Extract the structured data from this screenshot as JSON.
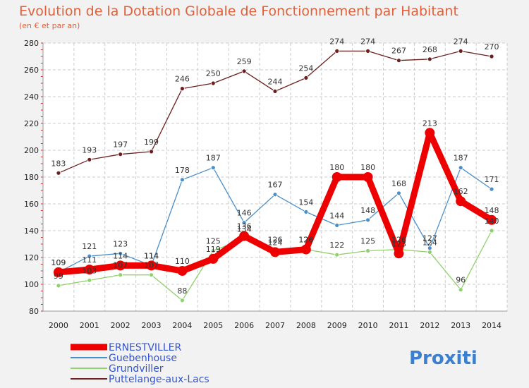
{
  "chart_data": {
    "type": "line",
    "title": "Evolution de la Dotation Globale de Fonctionnement par Habitant",
    "subtitle": "(en € et par an)",
    "xlabel": "",
    "ylabel": "",
    "ylim": [
      80,
      280
    ],
    "yticks": [
      80,
      100,
      120,
      140,
      160,
      180,
      200,
      220,
      240,
      260,
      280
    ],
    "categories": [
      "2000",
      "2001",
      "2002",
      "2003",
      "2004",
      "2005",
      "2006",
      "2007",
      "2008",
      "2009",
      "2010",
      "2011",
      "2012",
      "2013",
      "2014"
    ],
    "grid": true,
    "legend_position": "bottom-left",
    "series": [
      {
        "name": "Puttelange-aux-Lacs",
        "color": "#6b1f1f",
        "values": [
          183,
          193,
          197,
          199,
          246,
          250,
          259,
          244,
          254,
          274,
          274,
          267,
          268,
          274,
          270
        ]
      },
      {
        "name": "Guebenhouse",
        "color": "#4a8fc9",
        "values": [
          109,
          121,
          123,
          114,
          178,
          187,
          146,
          167,
          154,
          144,
          148,
          168,
          127,
          187,
          171
        ]
      },
      {
        "name": "Grundviller",
        "color": "#8fd16a",
        "values": [
          99,
          103,
          107,
          107,
          88,
          125,
          134,
          126,
          126,
          122,
          125,
          126,
          124,
          96,
          140
        ]
      },
      {
        "name": "ERNESTVILLER",
        "color": "#ee0000",
        "values": [
          109,
          111,
          114,
          114,
          110,
          119,
          136,
          124,
          126,
          180,
          180,
          123,
          213,
          162,
          148
        ]
      }
    ]
  },
  "legend": [
    "ERNESTVILLER",
    "Guebenhouse",
    "Grundviller",
    "Puttelange-aux-Lacs"
  ],
  "logo": "Proxiti"
}
